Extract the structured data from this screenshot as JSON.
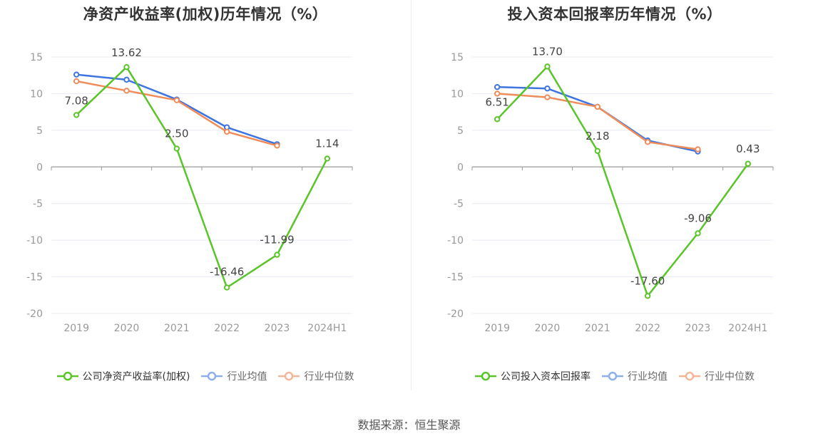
{
  "source": "数据来源：恒生聚源",
  "legend_labels": {
    "industry_avg": "行业均值",
    "industry_median": "行业中位数"
  },
  "colors": {
    "company": "#5ac429",
    "industry_avg": "#3d74e0",
    "industry_median": "#f08c5a",
    "industry_avg_legend": "#8faeed",
    "industry_median_legend": "#f5b59a",
    "grid": "#e8ecf4",
    "axis": "#999999"
  },
  "chart_data": [
    {
      "type": "line",
      "title": "净资产收益率(加权)历年情况（%）",
      "categories": [
        "2019",
        "2020",
        "2021",
        "2022",
        "2023",
        "2024H1"
      ],
      "ylim": [
        -20,
        15
      ],
      "yticks": [
        "15",
        "10",
        "5",
        "0",
        "-5",
        "-10",
        "-15",
        "-20"
      ],
      "grid": true,
      "legend_position": "bottom",
      "series": [
        {
          "name": "公司净资产收益率(加权)",
          "values": [
            7.08,
            13.62,
            2.5,
            -16.46,
            -11.99,
            1.14
          ],
          "labels": [
            "7.08",
            "13.62",
            "2.50",
            "-16.46",
            "-11.99",
            "1.14"
          ]
        },
        {
          "name": "行业均值",
          "values": [
            12.6,
            11.9,
            9.2,
            5.4,
            3.1,
            null
          ]
        },
        {
          "name": "行业中位数",
          "values": [
            11.7,
            10.4,
            9.1,
            4.8,
            2.9,
            null
          ]
        }
      ]
    },
    {
      "type": "line",
      "title": "投入资本回报率历年情况（%）",
      "categories": [
        "2019",
        "2020",
        "2021",
        "2022",
        "2023",
        "2024H1"
      ],
      "ylim": [
        -20,
        15
      ],
      "yticks": [
        "15",
        "10",
        "5",
        "0",
        "-5",
        "-10",
        "-15",
        "-20"
      ],
      "grid": true,
      "legend_position": "bottom",
      "series": [
        {
          "name": "公司投入资本回报率",
          "values": [
            6.51,
            13.7,
            2.18,
            -17.6,
            -9.06,
            0.43
          ],
          "labels": [
            "6.51",
            "13.70",
            "2.18",
            "-17.60",
            "-9.06",
            "0.43"
          ]
        },
        {
          "name": "行业均值",
          "values": [
            10.9,
            10.7,
            8.2,
            3.6,
            2.1,
            null
          ]
        },
        {
          "name": "行业中位数",
          "values": [
            10.0,
            9.5,
            8.2,
            3.4,
            2.4,
            null
          ]
        }
      ]
    }
  ]
}
